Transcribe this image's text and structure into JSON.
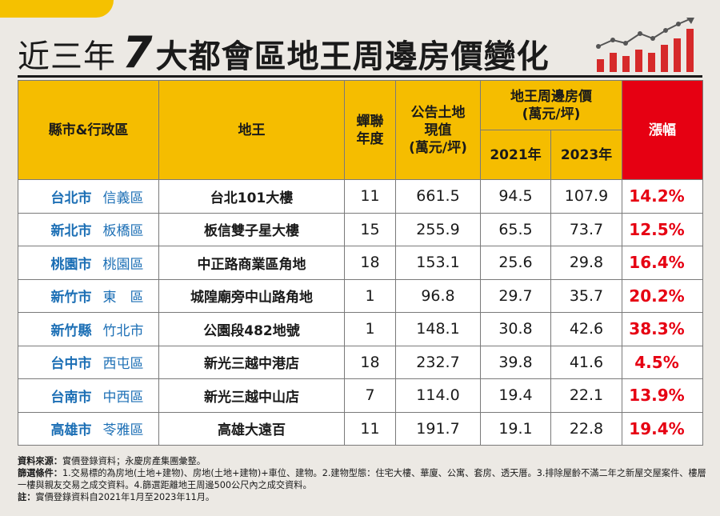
{
  "title": {
    "prefix": "近三年",
    "number": "7",
    "main": "大都會區地王周邊房價變化"
  },
  "colors": {
    "header_bg": "#f5bd00",
    "rise_header_bg": "#e60012",
    "city_text": "#1c6fb5",
    "rise_text": "#e60012",
    "accent_tab": "#f5c100"
  },
  "icons": {
    "title_chart": "rising-bar-chart-icon"
  },
  "table": {
    "headers": {
      "city": "縣市&行政區",
      "site": "地王",
      "year": "蟬聯\n年度",
      "land_value": "公告土地\n現值\n(萬元/坪)",
      "price_group": "地王周邊房價\n(萬元/坪)",
      "y2021": "2021年",
      "y2023": "2023年",
      "rise": "漲幅"
    },
    "rows": [
      {
        "city": "台北市",
        "district": "信義區",
        "site": "台北101大樓",
        "years": "11",
        "land": "661.5",
        "p2021": "94.5",
        "p2023": "107.9",
        "rise": "14.2%"
      },
      {
        "city": "新北市",
        "district": "板橋區",
        "site": "板信雙子星大樓",
        "years": "15",
        "land": "255.9",
        "p2021": "65.5",
        "p2023": "73.7",
        "rise": "12.5%"
      },
      {
        "city": "桃園市",
        "district": "桃園區",
        "site": "中正路商業區角地",
        "years": "18",
        "land": "153.1",
        "p2021": "25.6",
        "p2023": "29.8",
        "rise": "16.4%"
      },
      {
        "city": "新竹市",
        "district": "東　區",
        "site": "城隍廟旁中山路角地",
        "years": "1",
        "land": "96.8",
        "p2021": "29.7",
        "p2023": "35.7",
        "rise": "20.2%"
      },
      {
        "city": "新竹縣",
        "district": "竹北市",
        "site": "公園段482地號",
        "years": "1",
        "land": "148.1",
        "p2021": "30.8",
        "p2023": "42.6",
        "rise": "38.3%"
      },
      {
        "city": "台中市",
        "district": "西屯區",
        "site": "新光三越中港店",
        "years": "18",
        "land": "232.7",
        "p2021": "39.8",
        "p2023": "41.6",
        "rise": "4.5%"
      },
      {
        "city": "台南市",
        "district": "中西區",
        "site": "新光三越中山店",
        "years": "7",
        "land": "114.0",
        "p2021": "19.4",
        "p2023": "22.1",
        "rise": "13.9%"
      },
      {
        "city": "高雄市",
        "district": "苓雅區",
        "site": "高雄大遠百",
        "years": "11",
        "land": "191.7",
        "p2021": "19.1",
        "p2023": "22.8",
        "rise": "19.4%"
      }
    ]
  },
  "notes": {
    "source_label": "資料來源：",
    "source_text": "實價登錄資料；永慶房產集團彙整。",
    "criteria_label": "篩選條件：",
    "criteria_text": "1.交易標的為房地(土地+建物)、房地(土地+建物)+車位、建物。2.建物型態：住宅大樓、華廈、公寓、套房、透天厝。3.排除屋齡不滿二年之新屋交屋案件、樓層一樓與親友交易之成交資料。4.篩選距離地王周邊500公尺內之成交資料。",
    "note_label": "註：",
    "note_text": "實價登錄資料自2021年1月至2023年11月。"
  }
}
